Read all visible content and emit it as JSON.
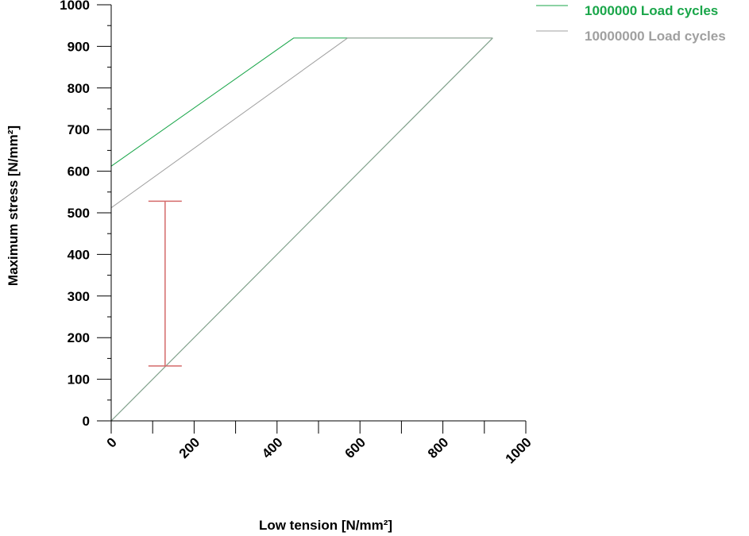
{
  "chart_data": {
    "type": "line",
    "xlabel": "Low tension [N/mm²]",
    "ylabel": "Maximum stress [N/mm²]",
    "xlim": [
      0,
      1000
    ],
    "ylim": [
      0,
      1000
    ],
    "x_ticks": [
      0,
      200,
      400,
      600,
      800,
      1000
    ],
    "y_ticks": [
      0,
      100,
      200,
      300,
      400,
      500,
      600,
      700,
      800,
      900,
      1000
    ],
    "x_minor_step": 100,
    "y_minor_step": 50,
    "grid": false,
    "legend_position": "top-right",
    "series": [
      {
        "name": "1000000 Load cycles",
        "color": "#1aa64a",
        "x": [
          0,
          440,
          920
        ],
        "y": [
          612,
          920,
          920
        ]
      },
      {
        "name": "10000000 Load cycles",
        "color": "#a0a0a0",
        "x": [
          0,
          570,
          920
        ],
        "y": [
          512,
          920,
          920
        ]
      }
    ],
    "reference_line": {
      "color": "#7fa08a",
      "x": [
        0,
        920
      ],
      "y": [
        0,
        920
      ]
    },
    "range_bar": {
      "color": "#d46a6a",
      "x": 130,
      "low": 132,
      "high": 528
    }
  }
}
